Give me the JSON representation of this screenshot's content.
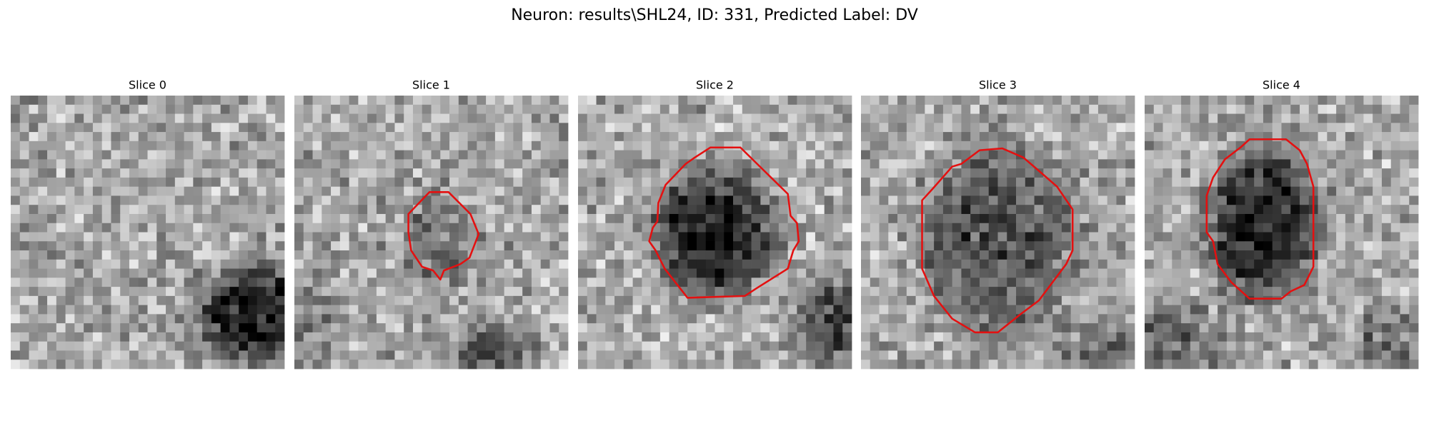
{
  "title": "Neuron: results\\SHL24, ID: 331, Predicted Label: DV",
  "panels": [
    {
      "label": "Slice 0"
    },
    {
      "label": "Slice 1"
    },
    {
      "label": "Slice 2"
    },
    {
      "label": "Slice 3"
    },
    {
      "label": "Slice 4"
    }
  ]
}
